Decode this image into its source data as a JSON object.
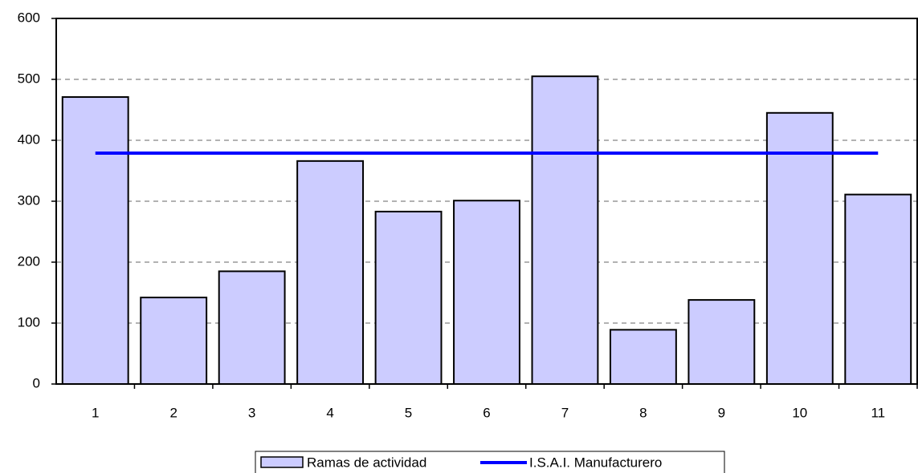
{
  "chart_data": {
    "type": "bar",
    "categories": [
      "1",
      "2",
      "3",
      "4",
      "5",
      "6",
      "7",
      "8",
      "9",
      "10",
      "11"
    ],
    "series": [
      {
        "name": "Ramas de actividad",
        "type": "bar",
        "color": "#ccccff",
        "values": [
          471,
          142,
          185,
          366,
          283,
          301,
          505,
          89,
          138,
          445,
          311
        ]
      },
      {
        "name": "I.S.A.I. Manufacturero",
        "type": "line",
        "color": "#0000ff",
        "values": [
          379,
          379,
          379,
          379,
          379,
          379,
          379,
          379,
          379,
          379,
          379
        ]
      }
    ],
    "ylim": [
      0,
      600
    ],
    "yticks": [
      0,
      100,
      200,
      300,
      400,
      500,
      600
    ],
    "grid": true,
    "legend": "bottom"
  }
}
